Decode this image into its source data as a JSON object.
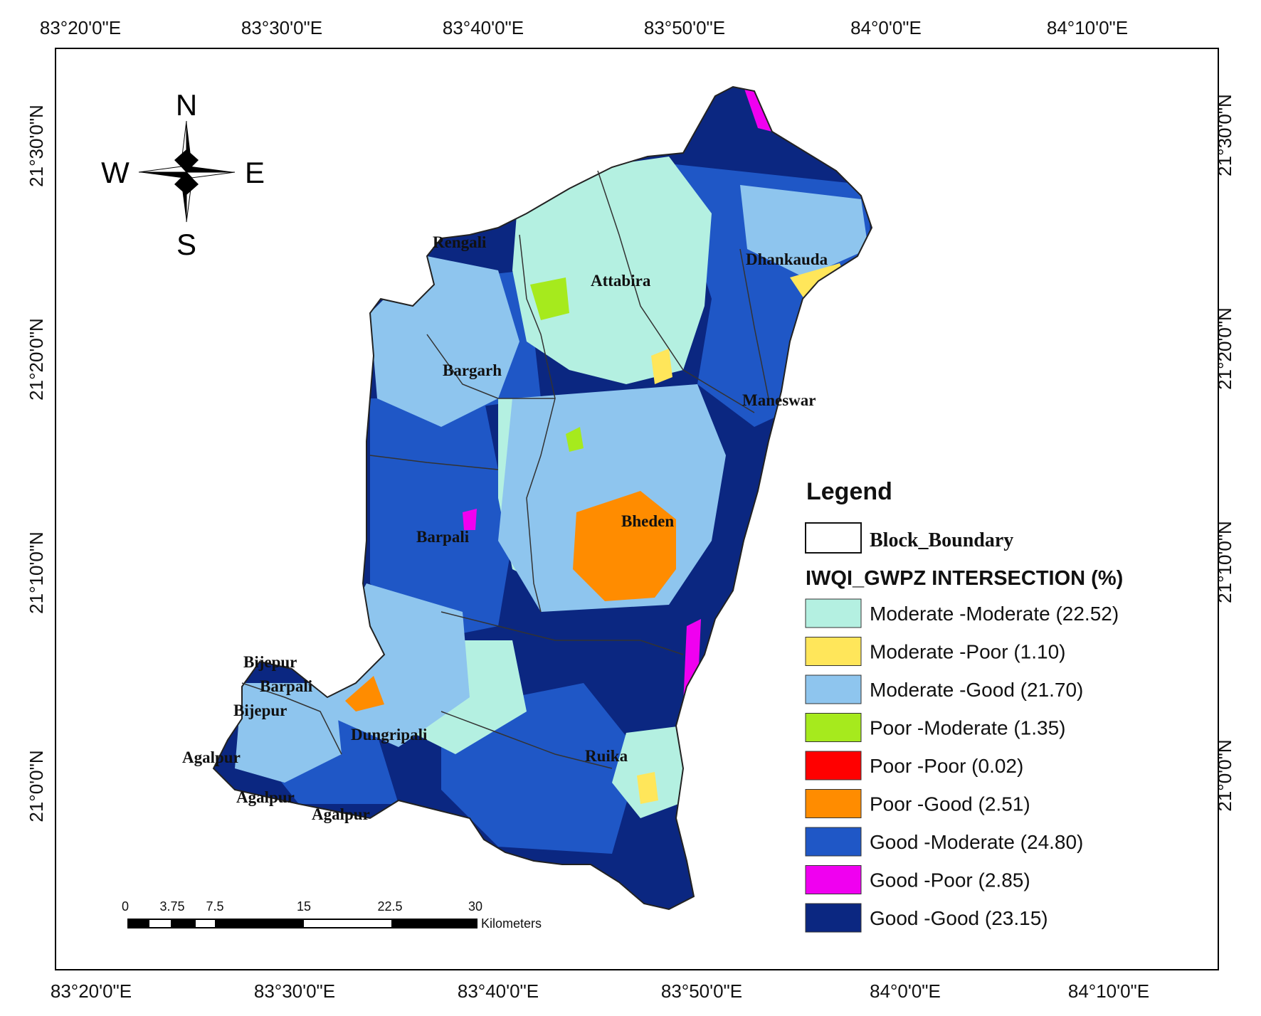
{
  "axes": {
    "top_lon": [
      "83°20'0\"E",
      "83°30'0\"E",
      "83°40'0\"E",
      "83°50'0\"E",
      "84°0'0\"E",
      "84°10'0\"E"
    ],
    "bottom_lon": [
      "83°20'0\"E",
      "83°30'0\"E",
      "83°40'0\"E",
      "83°50'0\"E",
      "84°0'0\"E",
      "84°10'0\"E"
    ],
    "left_lat": [
      "21°30'0\"N",
      "21°20'0\"N",
      "21°10'0\"N",
      "21°0'0\"N"
    ],
    "right_lat": [
      "21°30'0\"N",
      "21°20'0\"N",
      "21°10'0\"N",
      "21°0'0\"N"
    ]
  },
  "compass": {
    "n": "N",
    "s": "S",
    "e": "E",
    "w": "W"
  },
  "places": [
    "Attabira",
    "Dhankauda",
    "Bargarh",
    "Maneswar",
    "Barpali",
    "Bheden",
    "Bijepur",
    "Barpali",
    "Bijepur",
    "Dungripali",
    "Agalpur",
    "Agalpur",
    "Agalpur",
    "Rengali",
    "Ruika"
  ],
  "legend": {
    "title": "Legend",
    "boundary_label": "Block_Boundary",
    "subtitle": "IWQI_GWPZ INTERSECTION (%)",
    "items": [
      {
        "label": "Moderate -Moderate (22.52)",
        "color": "#b4f0e1"
      },
      {
        "label": "Moderate -Poor (1.10)",
        "color": "#ffe65a"
      },
      {
        "label": "Moderate -Good (21.70)",
        "color": "#8ec5ee"
      },
      {
        "label": "Poor -Moderate (1.35)",
        "color": "#a6ea1d"
      },
      {
        "label": "Poor -Poor (0.02)",
        "color": "#ff0000"
      },
      {
        "label": "Poor -Good (2.51)",
        "color": "#ff8c00"
      },
      {
        "label": "Good -Moderate (24.80)",
        "color": "#1f57c6"
      },
      {
        "label": "Good -Poor (2.85)",
        "color": "#f000f0"
      },
      {
        "label": "Good -Good (23.15)",
        "color": "#0b2781"
      }
    ]
  },
  "scale_bar": {
    "ticks": [
      "0",
      "3.75",
      "7.5",
      "15",
      "22.5",
      "30"
    ],
    "unit": "Kilometers"
  }
}
